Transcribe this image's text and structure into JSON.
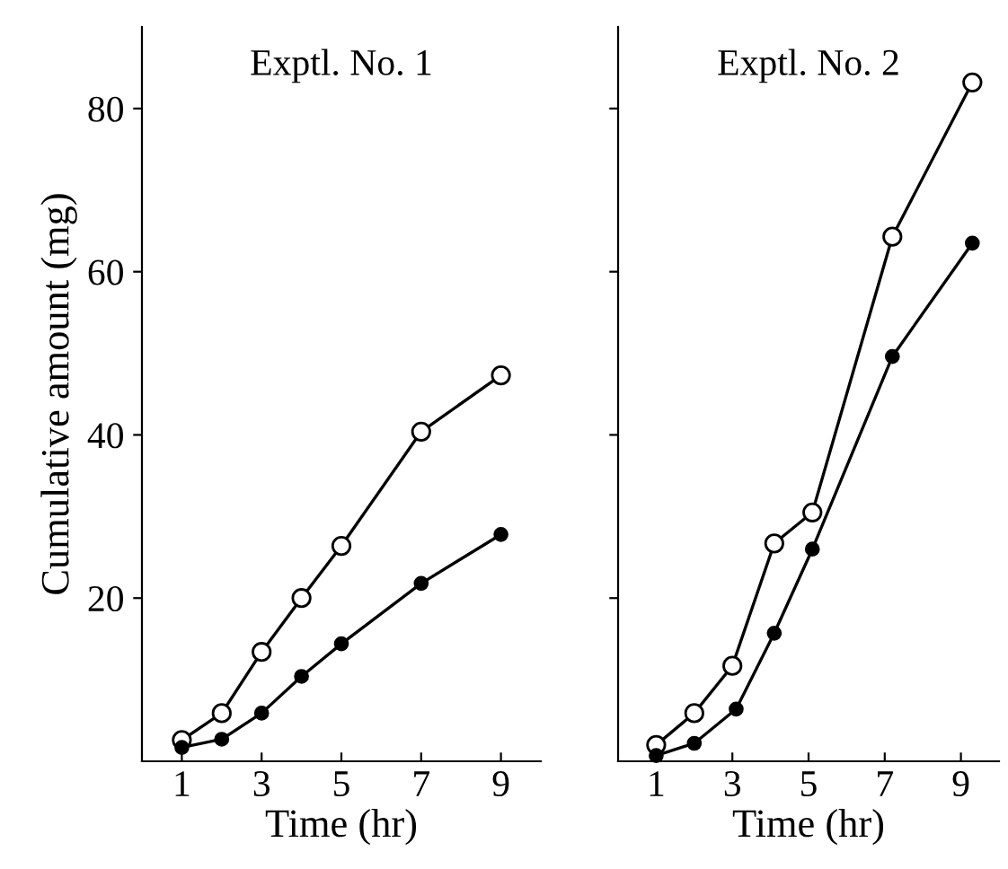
{
  "chart_data": [
    {
      "type": "line",
      "title": "Exptl. No. 1",
      "xlabel": "Time (hr)",
      "ylabel": "Cumulative amount (mg)",
      "xlim": [
        0,
        10
      ],
      "ylim": [
        0,
        90
      ],
      "xticks": [
        1,
        3,
        5,
        7,
        9
      ],
      "yticks": [
        20,
        40,
        60,
        80
      ],
      "marker": "circle",
      "series": [
        {
          "color": "#000000",
          "x": [
            1,
            2,
            3,
            4,
            5,
            7,
            9
          ],
          "values": [
            2.6,
            5.9,
            13.4,
            20,
            26.4,
            40.4,
            47.3
          ]
        },
        {
          "color": "#000000",
          "x": [
            1,
            2,
            3,
            4,
            5,
            7,
            9
          ],
          "values": [
            1.7,
            2.7,
            5.9,
            10.4,
            14.4,
            21.8,
            27.8
          ]
        }
      ]
    },
    {
      "type": "line",
      "title": "Exptl. No. 2",
      "xlabel": "Time (hr)",
      "xlim": [
        0,
        10
      ],
      "ylim": [
        0,
        90
      ],
      "xticks": [
        1,
        3,
        5,
        7,
        9
      ],
      "yticks": [
        {
          "value": 20,
          "label": null
        },
        {
          "value": 40,
          "label": null
        },
        {
          "value": 60,
          "label": null
        },
        {
          "value": 80,
          "label": null
        }
      ],
      "tick_labels": "x",
      "marker": "circle",
      "series": [
        {
          "color": "#000000",
          "x": [
            1.0,
            2.0,
            3.0,
            4.1,
            5.1,
            7.2,
            9.3
          ],
          "values": [
            2.0,
            5.9,
            11.7,
            26.7,
            30.5,
            64.3,
            83.2
          ]
        },
        {
          "color": "#000000",
          "x": [
            1.0,
            2.0,
            3.1,
            4.1,
            5.1,
            7.2,
            9.3
          ],
          "values": [
            0.7,
            2.2,
            6.4,
            15.7,
            26.0,
            49.6,
            63.5
          ]
        }
      ]
    }
  ]
}
